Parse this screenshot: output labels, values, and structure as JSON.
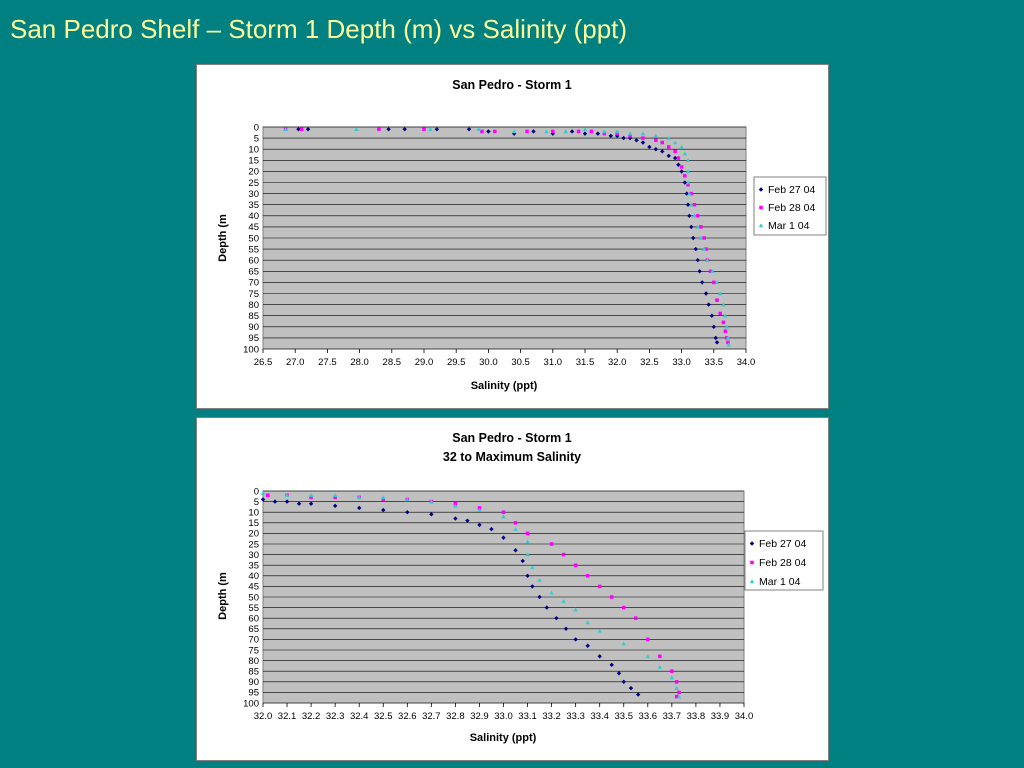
{
  "slide": {
    "title": "San Pedro Shelf – Storm 1 Depth (m) vs Salinity (ppt)",
    "title_color": "#ffff99",
    "background": "#008080"
  },
  "chart_data": [
    {
      "type": "scatter",
      "title": "San Pedro - Storm 1",
      "subtitle": "",
      "xlabel": "Salinity (ppt)",
      "ylabel": "Depth (m",
      "xlim": [
        26.5,
        34.0
      ],
      "ylim": [
        0,
        100
      ],
      "y_reversed": true,
      "x_ticks": [
        "26.5",
        "27.0",
        "27.5",
        "28.0",
        "28.5",
        "29.0",
        "29.5",
        "30.0",
        "30.5",
        "31.0",
        "31.5",
        "32.0",
        "32.5",
        "33.0",
        "33.5",
        "34.0"
      ],
      "y_ticks": [
        "0",
        "5",
        "10",
        "15",
        "20",
        "25",
        "30",
        "35",
        "40",
        "45",
        "50",
        "55",
        "60",
        "65",
        "70",
        "75",
        "80",
        "85",
        "90",
        "95",
        "100"
      ],
      "grid": "horizontal",
      "plot_background": "#c0c0c0",
      "legend_position": "right",
      "legend": [
        "Feb 27 04",
        "Feb 28 04",
        "Mar 1 04"
      ],
      "series": [
        {
          "name": "Feb 27 04",
          "color": "#000080",
          "marker": "diamond",
          "points": [
            [
              27.05,
              1
            ],
            [
              27.2,
              1
            ],
            [
              28.45,
              1
            ],
            [
              28.7,
              1
            ],
            [
              29.2,
              1
            ],
            [
              29.7,
              1
            ],
            [
              30.0,
              2
            ],
            [
              30.4,
              3
            ],
            [
              30.7,
              2
            ],
            [
              31.0,
              3
            ],
            [
              31.3,
              2
            ],
            [
              31.5,
              3
            ],
            [
              31.7,
              3
            ],
            [
              31.9,
              4
            ],
            [
              32.0,
              4
            ],
            [
              32.1,
              5
            ],
            [
              32.2,
              5
            ],
            [
              32.3,
              6
            ],
            [
              32.4,
              7
            ],
            [
              32.5,
              9
            ],
            [
              32.6,
              10
            ],
            [
              32.7,
              11
            ],
            [
              32.8,
              13
            ],
            [
              32.9,
              14
            ],
            [
              32.95,
              17
            ],
            [
              33.0,
              20
            ],
            [
              33.05,
              25
            ],
            [
              33.08,
              30
            ],
            [
              33.1,
              35
            ],
            [
              33.12,
              40
            ],
            [
              33.15,
              45
            ],
            [
              33.18,
              50
            ],
            [
              33.22,
              55
            ],
            [
              33.25,
              60
            ],
            [
              33.28,
              65
            ],
            [
              33.32,
              70
            ],
            [
              33.38,
              75
            ],
            [
              33.42,
              80
            ],
            [
              33.47,
              85
            ],
            [
              33.5,
              90
            ],
            [
              33.53,
              95
            ],
            [
              33.55,
              97
            ]
          ]
        },
        {
          "name": "Feb 28 04",
          "color": "#ff00ff",
          "marker": "square",
          "points": [
            [
              26.85,
              1
            ],
            [
              27.1,
              1
            ],
            [
              28.3,
              1
            ],
            [
              29.0,
              1
            ],
            [
              29.9,
              2
            ],
            [
              30.1,
              2
            ],
            [
              30.6,
              2
            ],
            [
              31.0,
              2
            ],
            [
              31.4,
              2
            ],
            [
              31.6,
              2
            ],
            [
              31.8,
              3
            ],
            [
              32.0,
              3
            ],
            [
              32.2,
              4
            ],
            [
              32.4,
              5
            ],
            [
              32.6,
              6
            ],
            [
              32.7,
              7
            ],
            [
              32.8,
              9
            ],
            [
              32.9,
              11
            ],
            [
              32.95,
              14
            ],
            [
              33.0,
              18
            ],
            [
              33.05,
              22
            ],
            [
              33.1,
              26
            ],
            [
              33.15,
              30
            ],
            [
              33.2,
              35
            ],
            [
              33.25,
              40
            ],
            [
              33.3,
              45
            ],
            [
              33.35,
              50
            ],
            [
              33.38,
              55
            ],
            [
              33.4,
              60
            ],
            [
              33.45,
              65
            ],
            [
              33.5,
              70
            ],
            [
              33.55,
              78
            ],
            [
              33.6,
              84
            ],
            [
              33.65,
              88
            ],
            [
              33.68,
              92
            ],
            [
              33.7,
              95
            ],
            [
              33.72,
              97
            ]
          ]
        },
        {
          "name": "Mar 1 04",
          "color": "#33cccc",
          "marker": "triangle",
          "points": [
            [
              26.85,
              1
            ],
            [
              27.95,
              1
            ],
            [
              29.1,
              1
            ],
            [
              29.85,
              1
            ],
            [
              30.4,
              2
            ],
            [
              30.9,
              2
            ],
            [
              31.2,
              2
            ],
            [
              31.5,
              1
            ],
            [
              31.8,
              2
            ],
            [
              32.0,
              2
            ],
            [
              32.2,
              3
            ],
            [
              32.4,
              3
            ],
            [
              32.6,
              4
            ],
            [
              32.8,
              5
            ],
            [
              32.9,
              7
            ],
            [
              33.0,
              9
            ],
            [
              33.05,
              12
            ],
            [
              33.1,
              15
            ],
            [
              33.1,
              20
            ],
            [
              33.1,
              25
            ],
            [
              33.12,
              30
            ],
            [
              33.15,
              35
            ],
            [
              33.2,
              40
            ],
            [
              33.25,
              45
            ],
            [
              33.3,
              50
            ],
            [
              33.35,
              55
            ],
            [
              33.4,
              60
            ],
            [
              33.48,
              65
            ],
            [
              33.55,
              70
            ],
            [
              33.6,
              75
            ],
            [
              33.65,
              80
            ],
            [
              33.68,
              85
            ],
            [
              33.7,
              90
            ],
            [
              33.72,
              95
            ],
            [
              33.73,
              98
            ]
          ]
        }
      ]
    },
    {
      "type": "scatter",
      "title": "San Pedro - Storm 1",
      "subtitle": "32 to Maximum Salinity",
      "xlabel": "Salinity (ppt)",
      "ylabel": "Depth (m",
      "xlim": [
        32.0,
        34.0
      ],
      "ylim": [
        0,
        100
      ],
      "y_reversed": true,
      "x_ticks": [
        "32.0",
        "32.1",
        "32.2",
        "32.3",
        "32.4",
        "32.5",
        "32.6",
        "32.7",
        "32.8",
        "32.9",
        "33.0",
        "33.1",
        "33.2",
        "33.3",
        "33.4",
        "33.5",
        "33.6",
        "33.7",
        "33.8",
        "33.9",
        "34.0"
      ],
      "y_ticks": [
        "0",
        "5",
        "10",
        "15",
        "20",
        "25",
        "30",
        "35",
        "40",
        "45",
        "50",
        "55",
        "60",
        "65",
        "70",
        "75",
        "80",
        "85",
        "90",
        "95",
        "100"
      ],
      "grid": "horizontal",
      "plot_background": "#c0c0c0",
      "legend_position": "right",
      "legend": [
        "Feb 27 04",
        "Feb 28 04",
        "Mar 1 04"
      ],
      "series": [
        {
          "name": "Feb 27 04",
          "color": "#000080",
          "marker": "diamond",
          "points": [
            [
              32.0,
              4
            ],
            [
              32.05,
              5
            ],
            [
              32.1,
              5
            ],
            [
              32.15,
              6
            ],
            [
              32.2,
              6
            ],
            [
              32.3,
              7
            ],
            [
              32.4,
              8
            ],
            [
              32.5,
              9
            ],
            [
              32.6,
              10
            ],
            [
              32.7,
              11
            ],
            [
              32.8,
              13
            ],
            [
              32.85,
              14
            ],
            [
              32.9,
              16
            ],
            [
              32.95,
              18
            ],
            [
              33.0,
              22
            ],
            [
              33.05,
              28
            ],
            [
              33.08,
              33
            ],
            [
              33.1,
              40
            ],
            [
              33.12,
              45
            ],
            [
              33.15,
              50
            ],
            [
              33.18,
              55
            ],
            [
              33.22,
              60
            ],
            [
              33.26,
              65
            ],
            [
              33.3,
              70
            ],
            [
              33.35,
              73
            ],
            [
              33.4,
              78
            ],
            [
              33.45,
              82
            ],
            [
              33.48,
              86
            ],
            [
              33.5,
              90
            ],
            [
              33.53,
              93
            ],
            [
              33.56,
              96
            ]
          ]
        },
        {
          "name": "Feb 28 04",
          "color": "#ff00ff",
          "marker": "square",
          "points": [
            [
              32.02,
              2
            ],
            [
              32.1,
              2
            ],
            [
              32.2,
              3
            ],
            [
              32.3,
              3
            ],
            [
              32.4,
              3
            ],
            [
              32.5,
              4
            ],
            [
              32.6,
              4
            ],
            [
              32.7,
              5
            ],
            [
              32.8,
              6
            ],
            [
              32.9,
              8
            ],
            [
              33.0,
              10
            ],
            [
              33.05,
              15
            ],
            [
              33.1,
              20
            ],
            [
              33.2,
              25
            ],
            [
              33.25,
              30
            ],
            [
              33.3,
              35
            ],
            [
              33.35,
              40
            ],
            [
              33.4,
              45
            ],
            [
              33.45,
              50
            ],
            [
              33.5,
              55
            ],
            [
              33.55,
              60
            ],
            [
              33.6,
              70
            ],
            [
              33.65,
              78
            ],
            [
              33.7,
              85
            ],
            [
              33.72,
              90
            ],
            [
              33.73,
              95
            ],
            [
              33.72,
              97
            ]
          ]
        },
        {
          "name": "Mar 1 04",
          "color": "#33cccc",
          "marker": "triangle",
          "points": [
            [
              32.0,
              1
            ],
            [
              32.1,
              2
            ],
            [
              32.2,
              2
            ],
            [
              32.3,
              2
            ],
            [
              32.4,
              3
            ],
            [
              32.5,
              3
            ],
            [
              32.6,
              4
            ],
            [
              32.7,
              5
            ],
            [
              32.8,
              7
            ],
            [
              32.9,
              9
            ],
            [
              33.0,
              12
            ],
            [
              33.05,
              18
            ],
            [
              33.1,
              24
            ],
            [
              33.1,
              30
            ],
            [
              33.12,
              36
            ],
            [
              33.15,
              42
            ],
            [
              33.2,
              48
            ],
            [
              33.25,
              52
            ],
            [
              33.3,
              56
            ],
            [
              33.35,
              62
            ],
            [
              33.4,
              66
            ],
            [
              33.5,
              72
            ],
            [
              33.6,
              78
            ],
            [
              33.65,
              83
            ],
            [
              33.7,
              88
            ],
            [
              33.72,
              93
            ],
            [
              33.73,
              97
            ]
          ]
        }
      ]
    }
  ]
}
